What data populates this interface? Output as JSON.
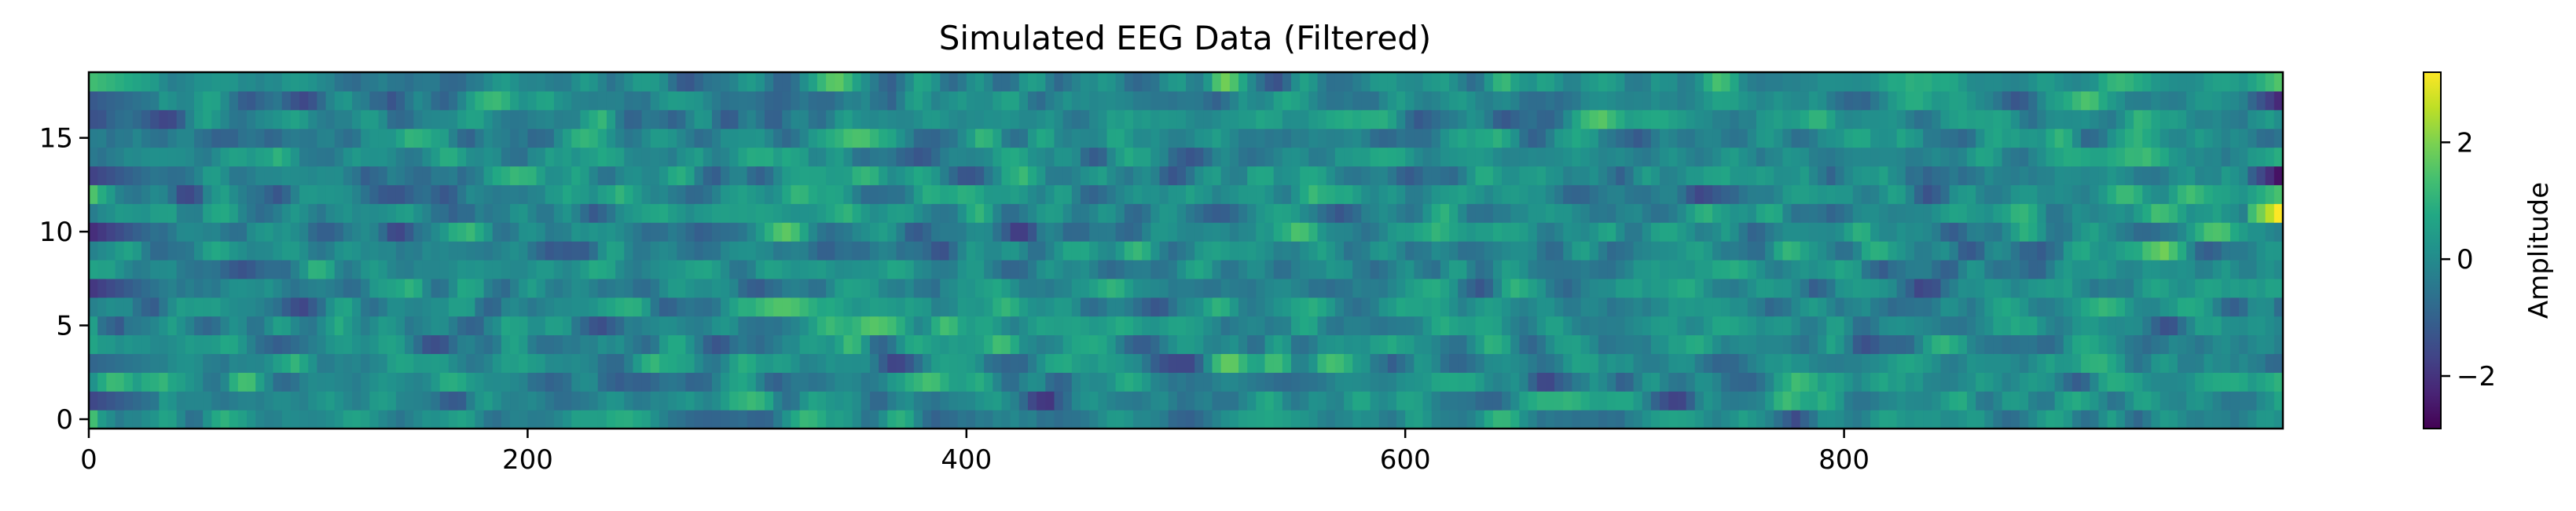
{
  "chart_data": {
    "type": "heatmap",
    "title": "Simulated EEG Data (Filtered)",
    "xlabel": "",
    "ylabel": "",
    "xlim": [
      0,
      1000
    ],
    "ylim": [
      -0.5,
      18.5
    ],
    "n_samples": 1000,
    "n_channels": 19,
    "x_ticks": [
      {
        "value": 0,
        "label": "0"
      },
      {
        "value": 200,
        "label": "200"
      },
      {
        "value": 400,
        "label": "400"
      },
      {
        "value": 600,
        "label": "600"
      },
      {
        "value": 800,
        "label": "800"
      }
    ],
    "y_ticks": [
      {
        "value": 0,
        "label": "0"
      },
      {
        "value": 5,
        "label": "5"
      },
      {
        "value": 10,
        "label": "10"
      },
      {
        "value": 15,
        "label": "15"
      }
    ],
    "colorbar": {
      "label": "Amplitude",
      "range": [
        -2.9,
        3.2
      ],
      "colormap": "viridis",
      "ticks": [
        {
          "value": 2,
          "label": "2"
        },
        {
          "value": 0,
          "label": "0"
        },
        {
          "value": -2,
          "label": "−2"
        }
      ]
    },
    "value_range": [
      -2.9,
      3.2
    ],
    "grid": false
  }
}
